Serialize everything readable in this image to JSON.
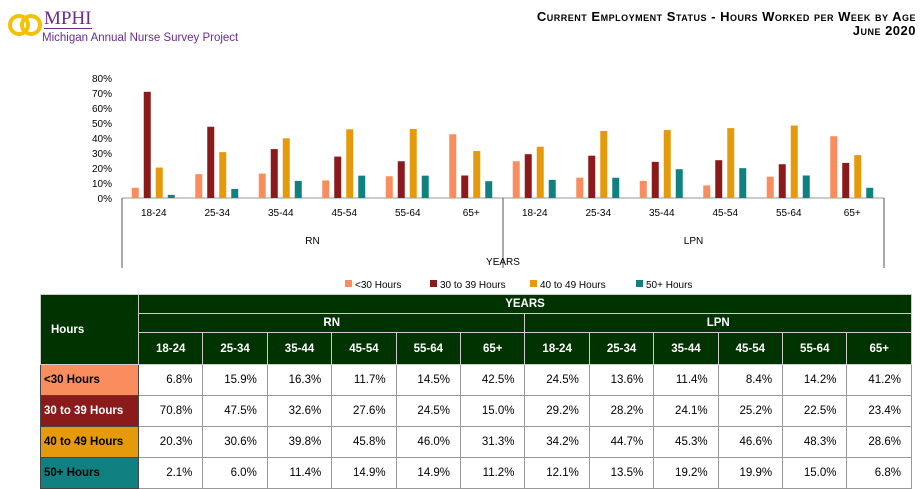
{
  "header": {
    "logo_text": "MPHI",
    "logo_subtitle": "Michigan Annual Nurse Survey Project",
    "title": "Current Employment Status - Hours Worked per Week by Age",
    "subtitle": "June 2020"
  },
  "chart_data": {
    "type": "bar",
    "title": "Current Employment Status - Hours Worked per Week by Age",
    "xlabel": "YEARS",
    "ylabel": "",
    "ylim": [
      0,
      80
    ],
    "yticks": [
      "0%",
      "10%",
      "20%",
      "30%",
      "40%",
      "50%",
      "60%",
      "70%",
      "80%"
    ],
    "groups": [
      "RN",
      "LPN"
    ],
    "categories": [
      "18-24",
      "25-34",
      "35-44",
      "45-54",
      "55-64",
      "65+"
    ],
    "legend_position": "bottom",
    "series": [
      {
        "name": "<30 Hours",
        "color": "#F98D5E",
        "values": {
          "RN": [
            6.8,
            15.9,
            16.3,
            11.7,
            14.5,
            42.5
          ],
          "LPN": [
            24.5,
            13.6,
            11.4,
            8.4,
            14.2,
            41.2
          ]
        }
      },
      {
        "name": "30 to 39 Hours",
        "color": "#8B1A1A",
        "values": {
          "RN": [
            70.8,
            47.5,
            32.6,
            27.6,
            24.5,
            15.0
          ],
          "LPN": [
            29.2,
            28.2,
            24.1,
            25.2,
            22.5,
            23.4
          ]
        }
      },
      {
        "name": "40 to 49 Hours",
        "color": "#E59A0B",
        "values": {
          "RN": [
            20.3,
            30.6,
            39.8,
            45.8,
            46.0,
            31.3
          ],
          "LPN": [
            34.2,
            44.7,
            45.3,
            46.6,
            48.3,
            28.6
          ]
        }
      },
      {
        "name": "50+ Hours",
        "color": "#118080",
        "values": {
          "RN": [
            2.1,
            6.0,
            11.4,
            14.9,
            14.9,
            11.2
          ],
          "LPN": [
            12.1,
            13.5,
            19.2,
            19.9,
            15.0,
            6.8
          ]
        }
      }
    ]
  },
  "table": {
    "corner": "Hours",
    "years": "YEARS",
    "rows": [
      {
        "label": "<30 Hours",
        "cells": [
          "6.8%",
          "15.9%",
          "16.3%",
          "11.7%",
          "14.5%",
          "42.5%",
          "24.5%",
          "13.6%",
          "11.4%",
          "8.4%",
          "14.2%",
          "41.2%"
        ]
      },
      {
        "label": "30 to 39 Hours",
        "cells": [
          "70.8%",
          "47.5%",
          "32.6%",
          "27.6%",
          "24.5%",
          "15.0%",
          "29.2%",
          "28.2%",
          "24.1%",
          "25.2%",
          "22.5%",
          "23.4%"
        ]
      },
      {
        "label": "40 to 49 Hours",
        "cells": [
          "20.3%",
          "30.6%",
          "39.8%",
          "45.8%",
          "46.0%",
          "31.3%",
          "34.2%",
          "44.7%",
          "45.3%",
          "46.6%",
          "48.3%",
          "28.6%"
        ]
      },
      {
        "label": "50+ Hours",
        "cells": [
          "2.1%",
          "6.0%",
          "11.4%",
          "14.9%",
          "14.9%",
          "11.2%",
          "12.1%",
          "13.5%",
          "19.2%",
          "19.9%",
          "15.0%",
          "6.8%"
        ]
      }
    ]
  }
}
